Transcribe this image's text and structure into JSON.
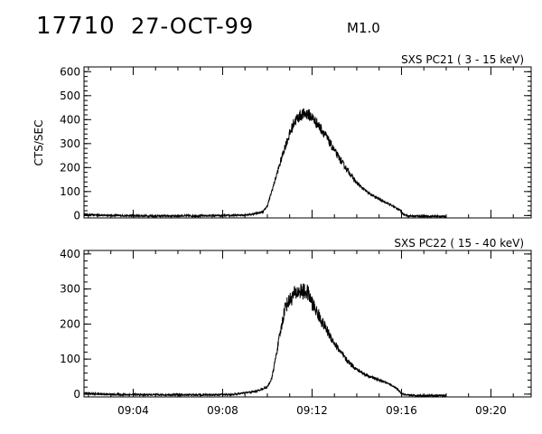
{
  "header": {
    "event_id": "17710",
    "date": "27-OCT-99",
    "flare_class": "M1.0"
  },
  "colors": {
    "line": "#000000",
    "background": "#ffffff"
  },
  "chart_data": [
    {
      "type": "line",
      "title": "SXS PC21  (  3 - 15 keV)",
      "ylabel": "CTS/SEC",
      "xlabel": "",
      "x_unit": "minutes past 09:00 UT",
      "xlim": [
        1.8,
        21.8
      ],
      "ylim": [
        -10,
        620
      ],
      "yticks": [
        0,
        100,
        200,
        300,
        400,
        500,
        600
      ],
      "xticks": [
        4,
        8,
        12,
        16,
        20
      ],
      "xtick_labels": [
        "09:04",
        "09:08",
        "09:12",
        "09:16",
        "09:20"
      ],
      "show_xtick_labels": false,
      "grid": false,
      "series": [
        {
          "noise": 0.06,
          "x": [
            1.8,
            3.0,
            5.0,
            7.0,
            8.5,
            9.3,
            9.8,
            10.0,
            10.8,
            11.2,
            11.5,
            11.8,
            12.0,
            12.5,
            13.0,
            13.5,
            14.0,
            14.5,
            15.0,
            15.5,
            15.9,
            16.1,
            16.3,
            17.0,
            18.0
          ],
          "y": [
            4,
            0,
            -2,
            -1,
            0,
            5,
            15,
            40,
            290,
            390,
            420,
            425,
            410,
            350,
            270,
            200,
            135,
            95,
            68,
            45,
            25,
            5,
            -2,
            -3,
            -4
          ]
        }
      ]
    },
    {
      "type": "line",
      "title": "SXS PC22  ( 15 - 40 keV)",
      "ylabel": "",
      "xlabel": "",
      "x_unit": "minutes past 09:00 UT",
      "xlim": [
        1.8,
        21.8
      ],
      "ylim": [
        -8,
        410
      ],
      "yticks": [
        0,
        100,
        200,
        300,
        400
      ],
      "xticks": [
        4,
        8,
        12,
        16,
        20
      ],
      "xtick_labels": [
        "09:04",
        "09:08",
        "09:12",
        "09:16",
        "09:20"
      ],
      "show_xtick_labels": true,
      "grid": false,
      "series": [
        {
          "noise": 0.08,
          "x": [
            1.8,
            3.0,
            5.0,
            7.0,
            8.5,
            9.5,
            10.0,
            10.2,
            10.8,
            11.2,
            11.5,
            11.8,
            12.0,
            12.5,
            13.0,
            13.5,
            14.0,
            14.5,
            15.0,
            15.5,
            15.8,
            16.0,
            16.2,
            17.0,
            18.0
          ],
          "y": [
            2,
            -1,
            -2,
            -2,
            -1,
            8,
            20,
            45,
            250,
            285,
            295,
            290,
            260,
            200,
            145,
            100,
            70,
            52,
            40,
            28,
            15,
            2,
            -3,
            -4,
            -4
          ]
        }
      ]
    }
  ]
}
